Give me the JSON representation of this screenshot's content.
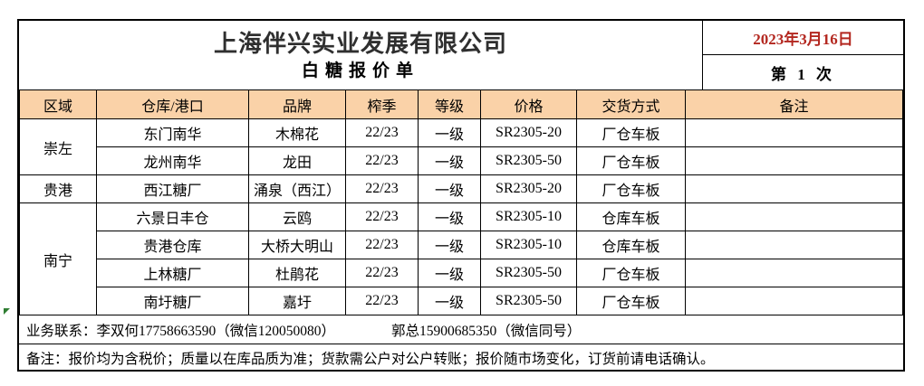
{
  "header": {
    "company": "上海伴兴实业发展有限公司",
    "doc_title": "白糖报价单",
    "date": "2023年3月16日",
    "issue": "第 1 次"
  },
  "table": {
    "columns": [
      "区域",
      "仓库/港口",
      "品牌",
      "榨季",
      "等级",
      "价格",
      "交货方式",
      "备注"
    ],
    "groups": [
      {
        "region": "崇左",
        "rows": [
          {
            "warehouse": "东门南华",
            "brand": "木棉花",
            "season": "22/23",
            "grade": "一级",
            "price": "SR2305-20",
            "delivery": "厂仓车板",
            "note": ""
          },
          {
            "warehouse": "龙州南华",
            "brand": "龙田",
            "season": "22/23",
            "grade": "一级",
            "price": "SR2305-50",
            "delivery": "厂仓车板",
            "note": ""
          }
        ]
      },
      {
        "region": "贵港",
        "rows": [
          {
            "warehouse": "西江糖厂",
            "brand": "涌泉（西江）",
            "season": "22/23",
            "grade": "一级",
            "price": "SR2305-20",
            "delivery": "厂仓车板",
            "note": ""
          }
        ]
      },
      {
        "region": "南宁",
        "rows": [
          {
            "warehouse": "六景日丰仓",
            "brand": "云鸥",
            "season": "22/23",
            "grade": "一级",
            "price": "SR2305-10",
            "delivery": "仓库车板",
            "note": ""
          },
          {
            "warehouse": "贵港仓库",
            "brand": "大桥大明山",
            "season": "22/23",
            "grade": "一级",
            "price": "SR2305-10",
            "delivery": "仓库车板",
            "note": ""
          },
          {
            "warehouse": "上林糖厂",
            "brand": "杜鹃花",
            "season": "22/23",
            "grade": "一级",
            "price": "SR2305-50",
            "delivery": "厂仓车板",
            "note": ""
          },
          {
            "warehouse": "南圩糖厂",
            "brand": "嘉圩",
            "season": "22/23",
            "grade": "一级",
            "price": "SR2305-50",
            "delivery": "厂仓车板",
            "note": ""
          }
        ]
      }
    ]
  },
  "footer": {
    "contact_left": "业务联系：李双何17758663590（微信120050080）",
    "contact_right": "郭总15900685350（微信同号）",
    "remarks": "备注：报价均为含税价；质量以在库品质为准；货款需公户对公户转账；报价随市场变化，订货前请电话确认。"
  },
  "icons": {
    "green_marker": "green-arrow-marker"
  },
  "colors": {
    "header_bg": "#FAD2A8",
    "date_red": "#B3271F",
    "title_dark": "#2F2F2F",
    "border": "#000000"
  }
}
